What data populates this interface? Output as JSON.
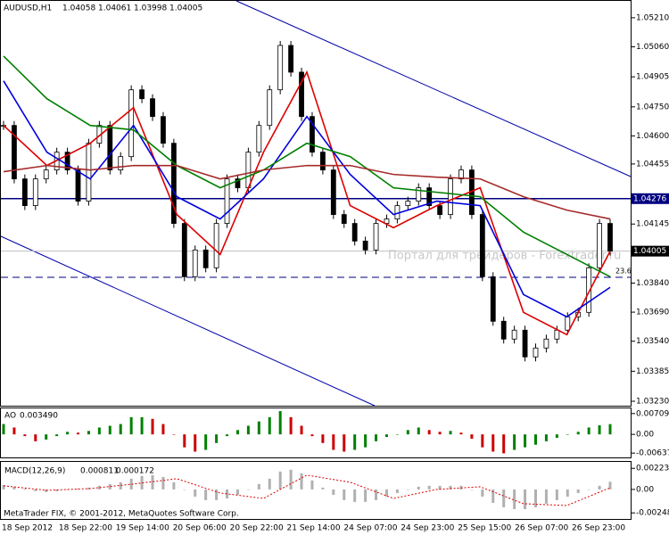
{
  "chart_data": {
    "type": "candlestick",
    "header": {
      "symbol": "AUDUSD,H1",
      "open": 1.04058,
      "high": 1.04061,
      "low": 1.03998,
      "close": 1.04005
    },
    "closes": [
      1.04654,
      1.04378,
      1.0424,
      1.04378,
      1.04424,
      1.04516,
      1.04424,
      1.04263,
      1.04562,
      1.04654,
      1.04424,
      1.04493,
      1.04838,
      1.04792,
      1.047,
      1.04562,
      1.04148,
      1.03873,
      1.04011,
      1.03919,
      1.04148,
      1.04378,
      1.04332,
      1.04516,
      1.04654,
      1.04838,
      1.05067,
      1.04929,
      1.047,
      1.04516,
      1.04424,
      1.04194,
      1.04148,
      1.04057,
      1.04011,
      1.04148,
      1.04171,
      1.0424,
      1.04263,
      1.04332,
      1.0424,
      1.04194,
      1.04378,
      1.04424,
      1.04194,
      1.03873,
      1.03643,
      1.03551,
      1.03597,
      1.03459,
      1.03505,
      1.03551,
      1.03597,
      1.03666,
      1.03689,
      1.03919,
      1.04148,
      1.04005
    ],
    "ma_series": [
      {
        "color": "#dd0000",
        "values": [
          1.04654,
          1.04447,
          1.04562,
          1.04746,
          1.04194,
          1.03988,
          1.04516,
          1.04929,
          1.0424,
          1.04126,
          1.0424,
          1.04332,
          1.03689,
          1.03574,
          1.04005
        ]
      },
      {
        "color": "#0000dd",
        "values": [
          1.04884,
          1.04516,
          1.04378,
          1.04654,
          1.04286,
          1.04171,
          1.04378,
          1.047,
          1.04401,
          1.04194,
          1.04263,
          1.0424,
          1.03781,
          1.03666,
          1.03818
        ]
      },
      {
        "color": "#008000",
        "values": [
          1.05012,
          1.04792,
          1.04654,
          1.04631,
          1.04447,
          1.04332,
          1.04424,
          1.04562,
          1.04493,
          1.04332,
          1.04309,
          1.04286,
          1.04103,
          1.03988,
          1.03873
        ]
      },
      {
        "color": "#a52a2a",
        "values": [
          1.04415,
          1.04447,
          1.04424,
          1.04447,
          1.04447,
          1.04378,
          1.04424,
          1.04447,
          1.04447,
          1.04401,
          1.04387,
          1.04378,
          1.04286,
          1.04217,
          1.04171
        ]
      }
    ],
    "ylim": [
      1.03207,
      1.05297
    ],
    "yticks": [
      {
        "value": 1.0521,
        "label": "1.05210"
      },
      {
        "value": 1.0506,
        "label": "1.05060"
      },
      {
        "value": 1.04905,
        "label": "1.04905"
      },
      {
        "value": 1.0475,
        "label": "1.04750"
      },
      {
        "value": 1.046,
        "label": "1.04600"
      },
      {
        "value": 1.04455,
        "label": "1.04455"
      },
      {
        "value": 1.04145,
        "label": "1.04145"
      },
      {
        "value": 1.0384,
        "label": "1.03840"
      },
      {
        "value": 1.0369,
        "label": "1.03690"
      },
      {
        "value": 1.0354,
        "label": "1.03540"
      },
      {
        "value": 1.03385,
        "label": "1.03385"
      },
      {
        "value": 1.0323,
        "label": "1.03230"
      }
    ],
    "hline": 1.04276,
    "current_price": 1.04005,
    "fib": {
      "value": 1.0387,
      "label": "23.6"
    },
    "watermark": "Портал для трейдеров - Forextrader.ru",
    "x_labels": [
      "18 Sep 2012",
      "18 Sep 22:00",
      "19 Sep 14:00",
      "20 Sep 06:00",
      "20 Sep 22:00",
      "21 Sep 14:00",
      "24 Sep 07:00",
      "24 Sep 23:00",
      "25 Sep 15:00",
      "26 Sep 07:00",
      "26 Sep 23:00"
    ],
    "ao": {
      "name": "AO",
      "value": 0.00349,
      "label": "0.003490",
      "up_color": "#008000",
      "down_color": "#cc0000",
      "values": [
        0.00352,
        0.00234,
        -0.00059,
        -0.00234,
        -0.00176,
        -0.00059,
        0.00088,
        0.00059,
        0.00117,
        0.00234,
        0.00293,
        0.00352,
        0.00586,
        0.00586,
        0.00527,
        0.00352,
        0,
        -0.0044,
        -0.00586,
        -0.00527,
        -0.00293,
        -0.00059,
        0.00147,
        0.00293,
        0.0044,
        0.00586,
        0.00791,
        0.00586,
        0.00293,
        -0.00059,
        -0.00293,
        -0.00527,
        -0.00586,
        -0.00527,
        -0.0044,
        -0.00234,
        -0.00088,
        0,
        0.00147,
        0.00234,
        0.00147,
        0.00088,
        0.00117,
        0.00059,
        -0.00147,
        -0.0044,
        -0.00586,
        -0.00645,
        -0.00527,
        -0.0044,
        -0.00352,
        -0.00234,
        -0.00117,
        0,
        0.00088,
        0.00234,
        0.0031,
        0.00349
      ],
      "ylim": [
        -0.00784,
        0.00885
      ],
      "yticks": [
        {
          "value": 0.00709,
          "label": "0.007090"
        },
        {
          "value": 0,
          "label": "0.00"
        },
        -0.00637
      ]
    },
    "macd": {
      "name": "MACD(12,26,9)",
      "main": 0.000811,
      "signal": 0.000172,
      "hist_color": "#b0b0b0",
      "signal_color": "#dd0000",
      "values": [
        0.00047,
        0.00028,
        9e-05,
        -0.00019,
        -0.00028,
        -0.00019,
        0,
        9e-05,
        0.00019,
        0.00038,
        0.00057,
        0.00076,
        0.00113,
        0.00142,
        0.00151,
        0.00132,
        0.00076,
        0,
        -0.00076,
        -0.00113,
        -0.00113,
        -0.00095,
        -0.00057,
        0,
        0.00057,
        0.00113,
        0.00189,
        0.00208,
        0.0017,
        0.00095,
        0.00019,
        -0.00057,
        -0.00113,
        -0.00132,
        -0.00132,
        -0.00113,
        -0.00076,
        -0.00038,
        0,
        0.00028,
        0.00038,
        0.00038,
        0.00038,
        0.00038,
        0,
        -0.00076,
        -0.00142,
        -0.00189,
        -0.00208,
        -0.00208,
        -0.00189,
        -0.00151,
        -0.00113,
        -0.00076,
        -0.00038,
        0,
        0.00038,
        0.000811
      ],
      "signal_values": [
        0.00038,
        -9e-05,
        9e-05,
        0.00057,
        0.00113,
        -0.00038,
        -0.00095,
        0.00151,
        0.00076,
        -0.00095,
        0,
        0.00028,
        -0.00151,
        -0.0017,
        0.000172
      ],
      "ylim": [
        -0.00312,
        0.00291
      ],
      "yticks": [
        0.00223,
        {
          "value": 0,
          "label": "0.00"
        },
        -0.00248
      ]
    },
    "footer": "MetaTrader FIX, © 2001-2012, MetaQuotes Software Corp."
  }
}
